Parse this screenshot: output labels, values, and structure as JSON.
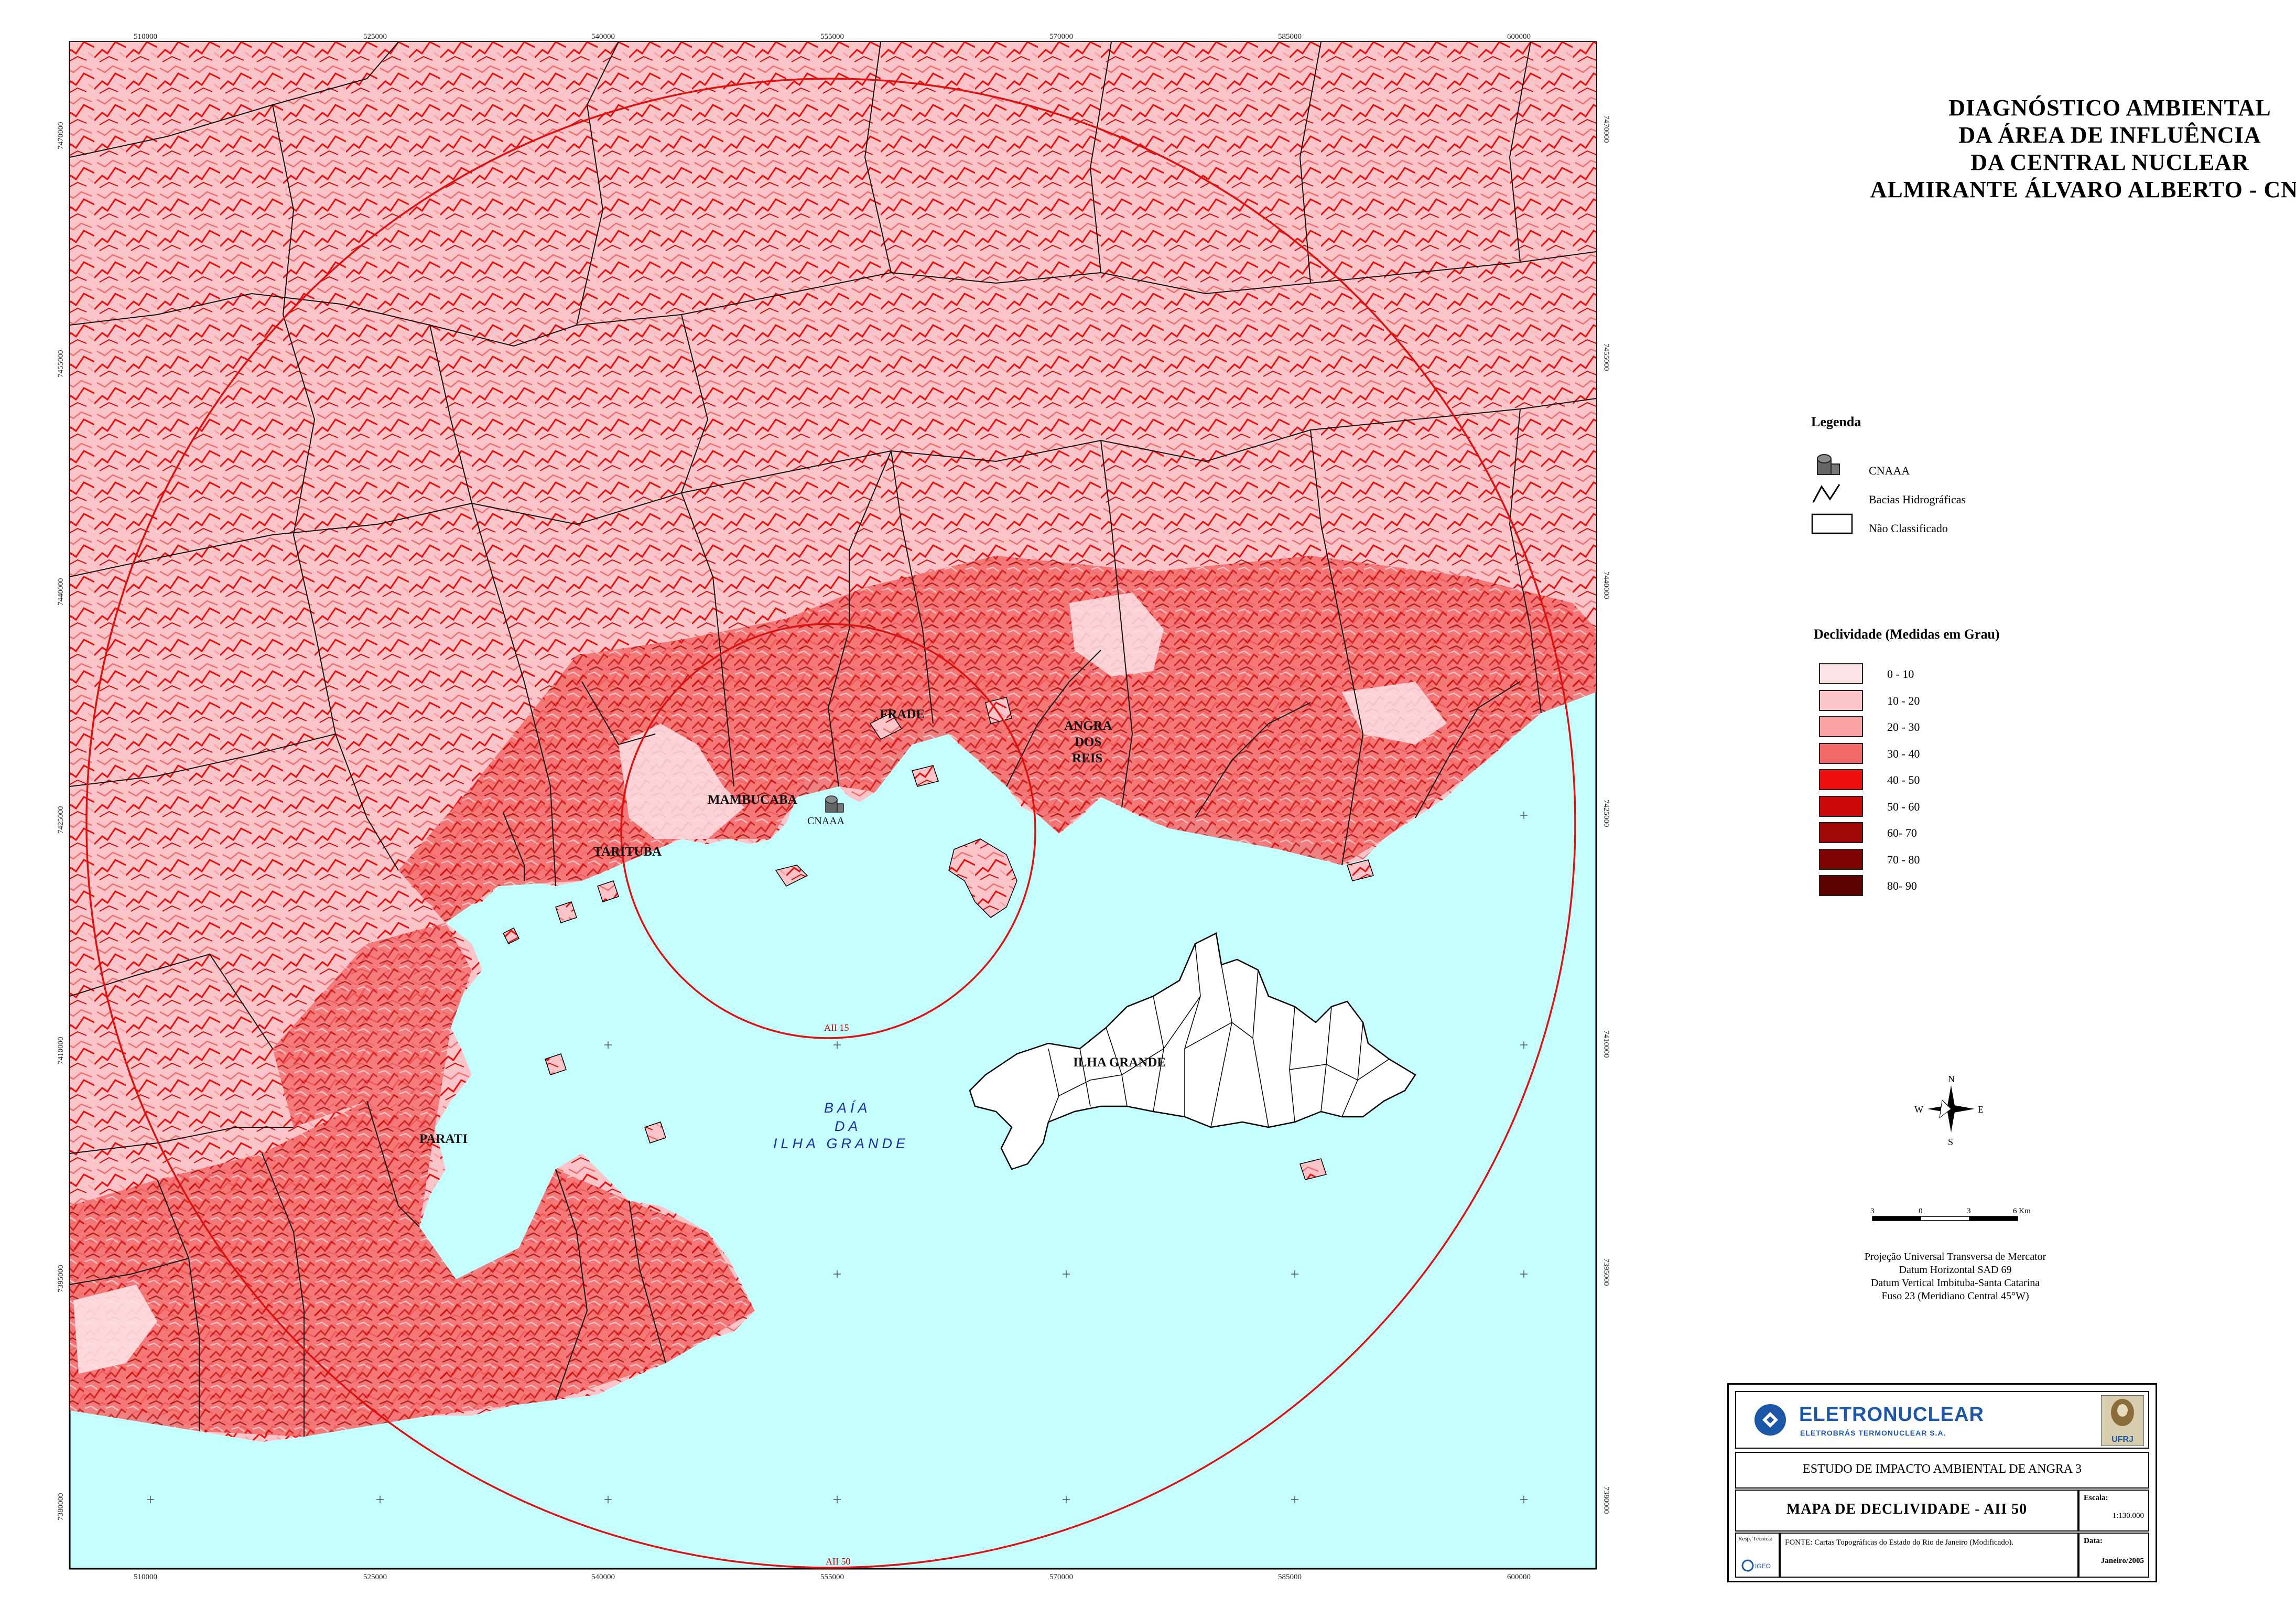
{
  "title": {
    "lines": [
      "DIAGNÓSTICO AMBIENTAL",
      "DA ÁREA DE INFLUÊNCIA",
      "DA CENTRAL NUCLEAR",
      "ALMIRANTE ÁLVARO ALBERTO - CNAAA"
    ]
  },
  "legend": {
    "heading": "Legenda",
    "items": [
      {
        "label": "CNAAA",
        "icon": "reactor-icon"
      },
      {
        "label": "Bacias Hidrográficas",
        "icon": "watershed-line-icon"
      },
      {
        "label": "Não Classificado",
        "icon": "unclassified-box-icon"
      }
    ]
  },
  "slope": {
    "heading": "Declividade (Medidas em Grau)",
    "classes": [
      {
        "label": "0 - 10",
        "color": "#fde2e6"
      },
      {
        "label": "10 - 20",
        "color": "#fbc4c8"
      },
      {
        "label": "20 - 30",
        "color": "#f8a2a4"
      },
      {
        "label": "30 - 40",
        "color": "#f46a6a"
      },
      {
        "label": "40 - 50",
        "color": "#ee0d0d"
      },
      {
        "label": "50 - 60",
        "color": "#cc0a0a"
      },
      {
        "label": "60- 70",
        "color": "#a10707"
      },
      {
        "label": "70 - 80",
        "color": "#7e0404"
      },
      {
        "label": "80- 90",
        "color": "#5e0202"
      }
    ]
  },
  "map": {
    "water_color": "#c4fefe",
    "land_color": "#fde2e6",
    "x_ticks": [
      "510000",
      "525000",
      "540000",
      "555000",
      "570000",
      "585000",
      "600000"
    ],
    "y_ticks": [
      "7470000",
      "7455000",
      "7440000",
      "7425000",
      "7410000",
      "7395000",
      "7380000"
    ],
    "places": {
      "frade": "FRADE",
      "angra1": "ANGRA",
      "angra2": "DOS",
      "angra3": "REIS",
      "mambucaba": "MAMBUCABA",
      "cnaaa": "CNAAA",
      "tarituba": "TARITUBA",
      "parati": "PARATI",
      "ilha_grande": "ILHA GRANDE"
    },
    "bay": [
      "BAÍA",
      "DA",
      "ILHA GRANDE"
    ],
    "aii15": "AII 15",
    "aii50": "AII 50"
  },
  "compass": {
    "n": "N",
    "s": "S",
    "e": "E",
    "w": "W"
  },
  "scalebar": {
    "labels": [
      "3",
      "0",
      "3",
      "6 Km"
    ]
  },
  "projection": {
    "lines": [
      "Projeção Universal Transversa de Mercator",
      "Datum Horizontal SAD 69",
      "Datum Vertical Imbituba-Santa Catarina",
      "Fuso 23 (Meridiano Central 45°W)"
    ]
  },
  "titleblock": {
    "company": "ELETRONUCLEAR",
    "company_sub": "ELETROBRÁS TERMONUCLEAR S.A.",
    "ufrj": "UFRJ",
    "study": "ESTUDO DE IMPACTO AMBIENTAL DE ANGRA 3",
    "map_title": "MAPA DE DECLIVIDADE - AII 50",
    "scale_label": "Escala:",
    "scale_value": "1:130.000",
    "resp_label": "Resp. Técnica:",
    "source": "FONTE:  Cartas Topográficas do Estado do Rio de Janeiro (Modificado).",
    "date_label": "Data:",
    "date_value": "Janeiro/2005"
  }
}
